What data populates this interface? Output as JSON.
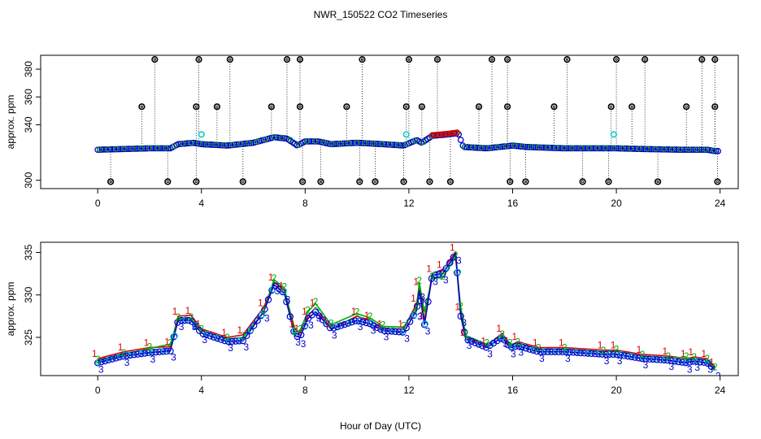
{
  "title": "NWR_150522  CO2 Timeseries",
  "xlabel": "Hour of Day (UTC)",
  "colors": {
    "blue": "#0000cc",
    "red": "#dd0000",
    "green": "#00aa00",
    "cyan": "#00cccc",
    "black": "#000000"
  },
  "chart_data": [
    {
      "type": "scatter",
      "panel": "top",
      "ylabel": "approx. ppm",
      "xlim": [
        -2.2,
        24.7
      ],
      "ylim": [
        294,
        390
      ],
      "xticks": [
        0,
        4,
        8,
        12,
        16,
        20,
        24
      ],
      "yticks": [
        300,
        340,
        380
      ],
      "ytick_labels": [
        "300",
        "340",
        "360",
        "380"
      ],
      "ytick_values": [
        300,
        340,
        360,
        380
      ],
      "baseline": [
        [
          0,
          322
        ],
        [
          1,
          322.5
        ],
        [
          2,
          323
        ],
        [
          2.8,
          323
        ],
        [
          3.1,
          326
        ],
        [
          3.7,
          327
        ],
        [
          4,
          326
        ],
        [
          5,
          325
        ],
        [
          6,
          327
        ],
        [
          6.8,
          331
        ],
        [
          7.3,
          330
        ],
        [
          7.7,
          325
        ],
        [
          8,
          328
        ],
        [
          8.5,
          328
        ],
        [
          9,
          326
        ],
        [
          10,
          327
        ],
        [
          11,
          326
        ],
        [
          11.8,
          325
        ],
        [
          12.3,
          329
        ],
        [
          12.5,
          327
        ],
        [
          12.9,
          332
        ],
        [
          13.5,
          333
        ],
        [
          13.9,
          334
        ],
        [
          14.1,
          324
        ],
        [
          15,
          323
        ],
        [
          16,
          325
        ],
        [
          16.5,
          324
        ],
        [
          18,
          323
        ],
        [
          20,
          323
        ],
        [
          21,
          322.5
        ],
        [
          22.5,
          322
        ],
        [
          23.5,
          322
        ],
        [
          23.8,
          321
        ]
      ],
      "outliers_high": [
        2.2,
        3.9,
        5.1,
        7.3,
        7.8,
        10.2,
        12.0,
        13.1,
        15.2,
        15.8,
        18.1,
        20.0,
        21.1,
        23.3,
        23.8
      ],
      "outliers_mid": [
        1.7,
        3.8,
        4.6,
        6.7,
        7.8,
        9.6,
        11.9,
        12.5,
        14.7,
        15.8,
        17.6,
        19.8,
        20.6,
        22.7,
        23.8
      ],
      "outliers_low": [
        0.5,
        2.7,
        3.8,
        5.6,
        7.9,
        8.6,
        10.1,
        10.7,
        11.8,
        12.8,
        13.6,
        15.9,
        16.5,
        18.7,
        19.7,
        21.6,
        23.9
      ],
      "cyan_points": [
        [
          4,
          333
        ],
        [
          11.9,
          333
        ],
        [
          19.9,
          333
        ]
      ]
    },
    {
      "type": "line",
      "panel": "bottom",
      "ylabel": "approx. ppm",
      "xlim": [
        -2.2,
        24.7
      ],
      "ylim": [
        320.5,
        336.2
      ],
      "xticks": [
        0,
        4,
        8,
        12,
        16,
        20,
        24
      ],
      "yticks": [
        325,
        330,
        335
      ],
      "series_labels": [
        "1",
        "2",
        "3"
      ],
      "series": [
        {
          "name": "1",
          "color": "#dd0000",
          "values": [
            [
              0,
              322.5
            ],
            [
              1,
              323.3
            ],
            [
              2,
              323.8
            ],
            [
              2.8,
              323.9
            ],
            [
              3.1,
              327.5
            ],
            [
              3.6,
              327.6
            ],
            [
              4,
              326
            ],
            [
              5,
              325
            ],
            [
              5.6,
              325.3
            ],
            [
              6.4,
              328.5
            ],
            [
              6.8,
              331.5
            ],
            [
              7.2,
              330.5
            ],
            [
              7.6,
              326
            ],
            [
              7.8,
              325.5
            ],
            [
              8.1,
              327.5
            ],
            [
              8.4,
              328.5
            ],
            [
              9,
              326
            ],
            [
              10,
              327.5
            ],
            [
              10.5,
              327
            ],
            [
              11,
              326
            ],
            [
              11.8,
              326
            ],
            [
              12.3,
              329
            ],
            [
              12.4,
              331
            ],
            [
              12.6,
              327
            ],
            [
              12.9,
              332.5
            ],
            [
              13.3,
              333
            ],
            [
              13.8,
              335
            ],
            [
              14,
              328
            ],
            [
              14.2,
              325
            ],
            [
              15,
              324
            ],
            [
              15.6,
              325.5
            ],
            [
              15.9,
              324
            ],
            [
              16.2,
              324.5
            ],
            [
              17,
              323.8
            ],
            [
              18,
              323.8
            ],
            [
              19.5,
              323.5
            ],
            [
              20,
              323.5
            ],
            [
              21,
              323
            ],
            [
              22,
              322.8
            ],
            [
              22.7,
              322.5
            ],
            [
              23,
              322.7
            ],
            [
              23.5,
              322.5
            ],
            [
              23.8,
              321.5
            ]
          ]
        },
        {
          "name": "2",
          "color": "#00aa00",
          "values": [
            [
              0,
              322.2
            ],
            [
              1,
              323
            ],
            [
              2,
              323.7
            ],
            [
              2.8,
              324.2
            ],
            [
              3.1,
              327.2
            ],
            [
              3.6,
              327.2
            ],
            [
              4,
              325.8
            ],
            [
              5,
              324.8
            ],
            [
              5.6,
              325
            ],
            [
              6.4,
              328
            ],
            [
              6.8,
              331.8
            ],
            [
              7.2,
              330.8
            ],
            [
              7.6,
              325.5
            ],
            [
              7.8,
              325.8
            ],
            [
              8.1,
              328
            ],
            [
              8.4,
              329
            ],
            [
              9,
              326.5
            ],
            [
              10,
              327.8
            ],
            [
              10.5,
              327.3
            ],
            [
              11,
              326.3
            ],
            [
              11.8,
              326.2
            ],
            [
              12.3,
              328.5
            ],
            [
              12.4,
              331.5
            ],
            [
              12.6,
              328
            ],
            [
              12.9,
              332
            ],
            [
              13.3,
              332
            ],
            [
              13.8,
              334.5
            ],
            [
              14,
              328.5
            ],
            [
              14.2,
              325.2
            ],
            [
              15,
              324.2
            ],
            [
              15.6,
              325.2
            ],
            [
              15.9,
              324.2
            ],
            [
              16.2,
              324.3
            ],
            [
              17,
              323.6
            ],
            [
              18,
              323.6
            ],
            [
              19.5,
              323.3
            ],
            [
              20,
              323.4
            ],
            [
              21,
              322.8
            ],
            [
              22,
              322.6
            ],
            [
              22.7,
              322.6
            ],
            [
              23,
              322.5
            ],
            [
              23.5,
              322.3
            ],
            [
              23.8,
              321.3
            ]
          ]
        },
        {
          "name": "3",
          "color": "#0000cc",
          "values": [
            [
              0,
              322
            ],
            [
              1,
              322.8
            ],
            [
              2,
              323.2
            ],
            [
              2.8,
              323.4
            ],
            [
              3.1,
              327
            ],
            [
              3.6,
              327
            ],
            [
              4,
              325.5
            ],
            [
              5,
              324.5
            ],
            [
              5.6,
              324.6
            ],
            [
              6.4,
              328
            ],
            [
              6.8,
              331.2
            ],
            [
              7.2,
              330.2
            ],
            [
              7.6,
              325.2
            ],
            [
              7.8,
              325
            ],
            [
              8.1,
              327.2
            ],
            [
              8.4,
              328
            ],
            [
              9,
              326
            ],
            [
              10,
              327
            ],
            [
              10.5,
              326.6
            ],
            [
              11,
              325.8
            ],
            [
              11.8,
              325.6
            ],
            [
              12.3,
              328.2
            ],
            [
              12.4,
              330.5
            ],
            [
              12.6,
              326.5
            ],
            [
              12.9,
              332.3
            ],
            [
              13.3,
              332.5
            ],
            [
              13.8,
              334.8
            ],
            [
              14,
              327.5
            ],
            [
              14.2,
              324.8
            ],
            [
              15,
              323.8
            ],
            [
              15.6,
              325
            ],
            [
              15.9,
              323.8
            ],
            [
              16.2,
              324
            ],
            [
              17,
              323.3
            ],
            [
              18,
              323.3
            ],
            [
              19.5,
              323
            ],
            [
              20,
              323
            ],
            [
              21,
              322.5
            ],
            [
              22,
              322.3
            ],
            [
              22.7,
              322
            ],
            [
              23,
              322.2
            ],
            [
              23.5,
              322
            ],
            [
              23.8,
              321.2
            ]
          ]
        }
      ]
    }
  ]
}
